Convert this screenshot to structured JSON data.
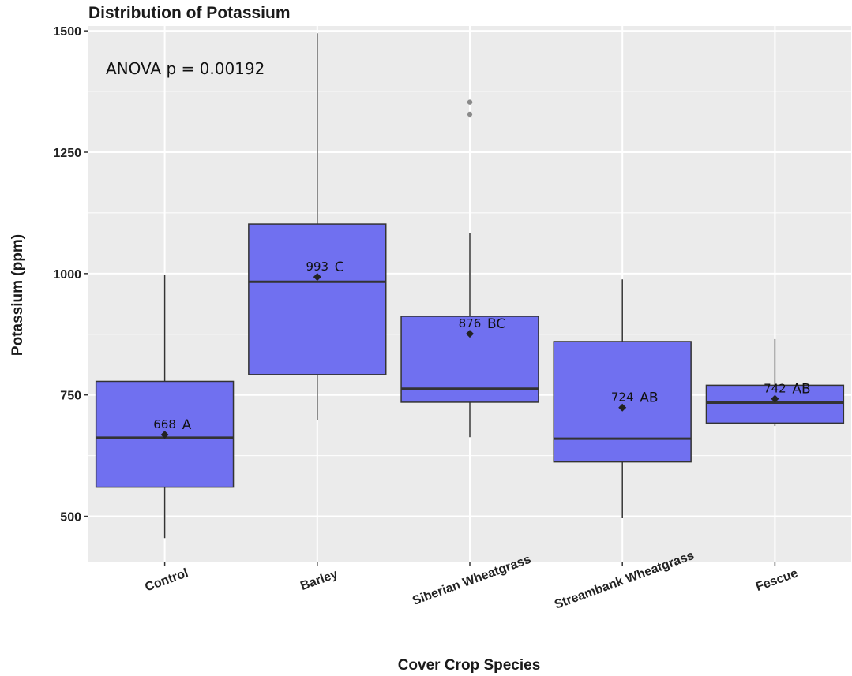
{
  "chart_data": {
    "type": "boxplot",
    "title": "Distribution of Potassium",
    "xlabel": "Cover Crop Species",
    "ylabel": "Potassium (ppm)",
    "ylim": [
      405,
      1510
    ],
    "yticks": [
      500,
      750,
      1000,
      1250,
      1500
    ],
    "ytick_labels": [
      "500",
      "750",
      "1000",
      "1250",
      "1500"
    ],
    "grid": true,
    "annotation": "ANOVA p = 0.00192",
    "colors": {
      "box_fill": "#7070f0",
      "box_stroke": "#333333",
      "panel_bg": "#ebebeb",
      "grid": "#ffffff",
      "outlier": "#8a8a8a"
    },
    "categories": [
      "Control",
      "Barley",
      "Siberian Wheatgrass",
      "Streambank Wheatgrass",
      "Fescue"
    ],
    "boxes": [
      {
        "category": "Control",
        "whisker_low": 455,
        "q1": 560,
        "median": 662,
        "q3": 778,
        "whisker_high": 997,
        "mean": 668,
        "mean_label": "668",
        "group": "A",
        "outliers": []
      },
      {
        "category": "Barley",
        "whisker_low": 698,
        "q1": 792,
        "median": 983,
        "q3": 1102,
        "whisker_high": 1495,
        "mean": 993,
        "mean_label": "993",
        "group": "C",
        "outliers": []
      },
      {
        "category": "Siberian Wheatgrass",
        "whisker_low": 663,
        "q1": 735,
        "median": 763,
        "q3": 912,
        "whisker_high": 1084,
        "mean": 876,
        "mean_label": "876",
        "group": "BC",
        "outliers": [
          1353,
          1328
        ]
      },
      {
        "category": "Streambank Wheatgrass",
        "whisker_low": 496,
        "q1": 612,
        "median": 660,
        "q3": 860,
        "whisker_high": 988,
        "mean": 724,
        "mean_label": "724",
        "group": "AB",
        "outliers": []
      },
      {
        "category": "Fescue",
        "whisker_low": 686,
        "q1": 692,
        "median": 734,
        "q3": 770,
        "whisker_high": 865,
        "mean": 742,
        "mean_label": "742",
        "group": "AB",
        "outliers": []
      }
    ]
  }
}
